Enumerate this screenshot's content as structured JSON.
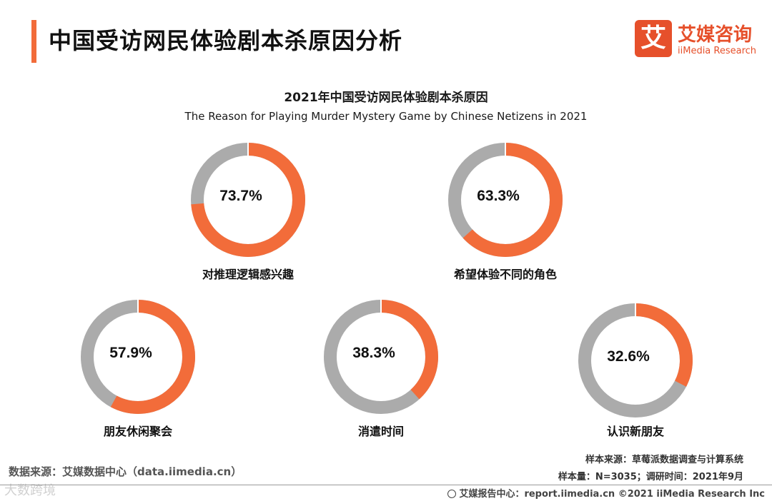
{
  "header": {
    "title": "中国受访网民体验剧本杀原因分析",
    "logo": {
      "mark": "艾",
      "name_cn": "艾媒咨询",
      "name_en": "iiMedia Research"
    }
  },
  "colors": {
    "accent": "#f26c3a",
    "remainder": "#ababab"
  },
  "chart_data": {
    "type": "pie",
    "variant": "donut",
    "title": "2021年中国受访网民体验剧本杀原因",
    "subtitle": "The Reason for Playing Murder Mystery Game by Chinese Netizens in 2021",
    "unit": "%",
    "categories": [
      "对推理逻辑感兴趣",
      "希望体验不同的角色",
      "朋友休闲聚会",
      "消遣时间",
      "认识新朋友"
    ],
    "values": [
      73.7,
      63.3,
      57.9,
      38.3,
      32.6
    ],
    "value_labels": [
      "73.7%",
      "63.3%",
      "57.9%",
      "38.3%",
      "32.6%"
    ]
  },
  "footer": {
    "data_source": "数据来源：艾媒数据中心（data.iimedia.cn）",
    "watermark": "大数跨境",
    "sample_source": "样本来源：草莓派数据调查与计算系统",
    "sample_size": "样本量：N=3035；调研时间：2021年9月",
    "report_center": "艾媒报告中心：report.iimedia.cn  ©2021  iiMedia Research  Inc"
  }
}
